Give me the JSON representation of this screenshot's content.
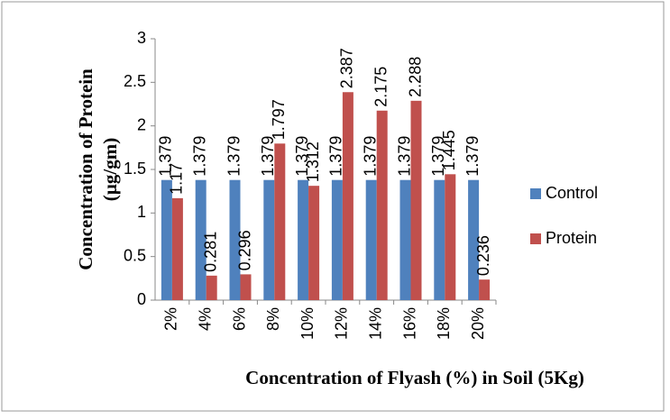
{
  "chart_data": {
    "type": "bar",
    "x_label": "Concentration of Flyash (%) in Soil (5Kg)",
    "y_label": [
      "Concentration of Protein",
      "(µg/gm)"
    ],
    "categories": [
      "2%",
      "4%",
      "6%",
      "8%",
      "10%",
      "12%",
      "14%",
      "16%",
      "18%",
      "20%"
    ],
    "series": [
      {
        "name": "Control",
        "color": "#4f81bd",
        "values": [
          1.379,
          1.379,
          1.379,
          1.379,
          1.379,
          1.379,
          1.379,
          1.379,
          1.379,
          1.379
        ]
      },
      {
        "name": "Protein",
        "color": "#c0504d",
        "values": [
          1.17,
          0.281,
          0.296,
          1.797,
          1.312,
          2.387,
          2.175,
          2.288,
          1.445,
          0.236
        ]
      }
    ],
    "ylim": [
      0,
      3
    ],
    "yticks": [
      0,
      0.5,
      1,
      1.5,
      2,
      2.5,
      3
    ],
    "grid": false,
    "legend": "right"
  }
}
